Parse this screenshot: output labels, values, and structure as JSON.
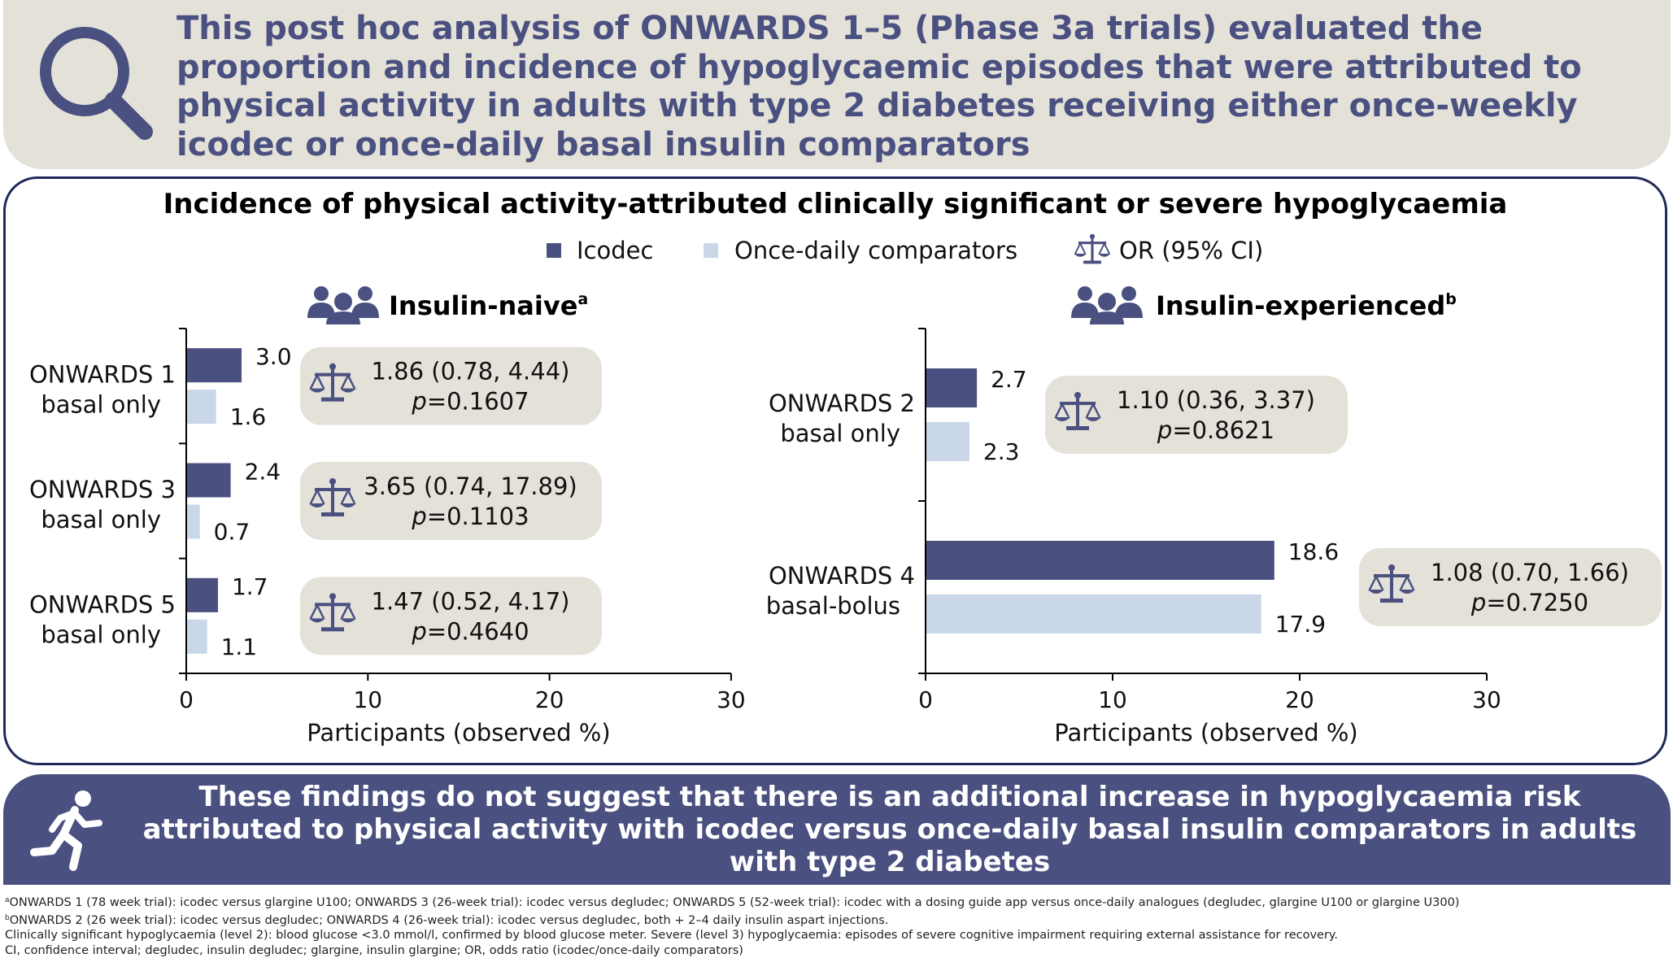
{
  "header": {
    "text": "This post hoc analysis of ONWARDS 1–5 (Phase 3a trials) evaluated the proportion and incidence of hypoglycaemic episodes that were attributed to physical activity in adults with type 2 diabetes receiving either once-weekly icodec or once-daily basal insulin comparators",
    "icon": "magnifier-icon"
  },
  "colors": {
    "icodec": "#4a5080",
    "comparators": "#c9d7e8",
    "or_box": "#e4e1d9",
    "text_blue": "#4a5080",
    "border": "#1f2a5a"
  },
  "chart_data": {
    "title": "Incidence of physical activity-attributed clinically significant or severe hypoglycaemia",
    "legend": [
      {
        "label": "Icodec",
        "icon": "square-icon"
      },
      {
        "label": "Once-daily comparators",
        "icon": "square-icon"
      },
      {
        "label": "OR (95% CI)",
        "icon": "scale-icon"
      }
    ],
    "panels": [
      {
        "type": "bar",
        "orientation": "horizontal",
        "title": "Insulin-naive",
        "title_sup": "a",
        "icon": "people-icon",
        "xlabel": "Participants (observed %)",
        "xlim": [
          0,
          30
        ],
        "xticks": [
          "0",
          "10",
          "20",
          "30"
        ],
        "categories": [
          {
            "name": "ONWARDS 1",
            "sub": "basal only"
          },
          {
            "name": "ONWARDS 3",
            "sub": "basal only"
          },
          {
            "name": "ONWARDS 5",
            "sub": "basal only"
          }
        ],
        "series": [
          {
            "name": "Icodec",
            "values": [
              3.0,
              2.4,
              1.7
            ],
            "labels": [
              "3.0",
              "2.4",
              "1.7"
            ]
          },
          {
            "name": "Once-daily comparators",
            "values": [
              1.6,
              0.7,
              1.1
            ],
            "labels": [
              "1.6",
              "0.7",
              "1.1"
            ]
          }
        ],
        "odds_ratios": [
          {
            "or_text": "1.86 (0.78, 4.44)",
            "p_label": "p",
            "p_text": "=0.1607"
          },
          {
            "or_text": "3.65 (0.74, 17.89)",
            "p_label": "p",
            "p_text": "=0.1103"
          },
          {
            "or_text": "1.47 (0.52, 4.17)",
            "p_label": "p",
            "p_text": "=0.4640"
          }
        ]
      },
      {
        "type": "bar",
        "orientation": "horizontal",
        "title": "Insulin-experienced",
        "title_sup": "b",
        "icon": "people-icon",
        "xlabel": "Participants (observed %)",
        "xlim": [
          0,
          30
        ],
        "xticks": [
          "0",
          "10",
          "20",
          "30"
        ],
        "categories": [
          {
            "name": "ONWARDS 2",
            "sub": "basal only"
          },
          {
            "name": "ONWARDS 4",
            "sub": "basal-bolus"
          }
        ],
        "series": [
          {
            "name": "Icodec",
            "values": [
              2.7,
              18.6
            ],
            "labels": [
              "2.7",
              "18.6"
            ]
          },
          {
            "name": "Once-daily comparators",
            "values": [
              2.3,
              17.9
            ],
            "labels": [
              "2.3",
              "17.9"
            ]
          }
        ],
        "odds_ratios": [
          {
            "or_text": "1.10 (0.36, 3.37)",
            "p_label": "p",
            "p_text": "=0.8621"
          },
          {
            "or_text": "1.08 (0.70, 1.66)",
            "p_label": "p",
            "p_text": "=0.7250"
          }
        ]
      }
    ]
  },
  "conclusion": {
    "text": "These findings do not suggest that there is an additional increase in hypoglycaemia risk attributed to physical activity with icodec versus once-daily basal insulin comparators in adults with type 2 diabetes",
    "icon": "running-person-icon"
  },
  "footnotes": [
    {
      "sup": "a",
      "text": "ONWARDS 1 (78 week trial): icodec versus glargine U100; ONWARDS 3 (26-week trial): icodec versus degludec; ONWARDS 5 (52-week trial): icodec with a dosing guide app versus once-daily analogues (degludec, glargine U100 or glargine U300)"
    },
    {
      "sup": "b",
      "text": "ONWARDS 2 (26 week trial): icodec versus degludec; ONWARDS 4 (26-week trial): icodec versus degludec, both + 2–4 daily insulin aspart injections."
    },
    {
      "sup": "",
      "text": "Clinically significant hypoglycaemia (level 2): blood glucose <3.0 mmol/l, confirmed by blood glucose meter. Severe (level 3) hypoglycaemia: episodes of severe cognitive impairment requiring external assistance for recovery."
    },
    {
      "sup": "",
      "text": "CI, confidence interval; degludec, insulin degludec; glargine, insulin glargine; OR, odds ratio (icodec/once-daily comparators)"
    }
  ]
}
